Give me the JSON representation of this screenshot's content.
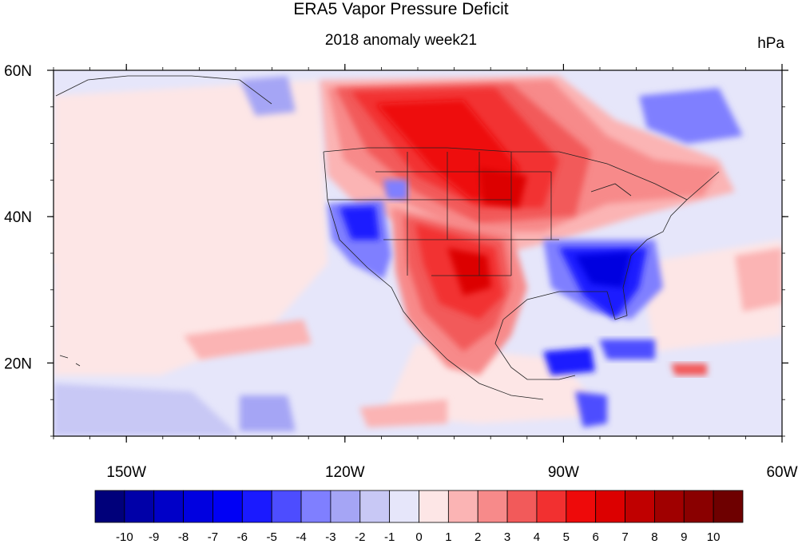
{
  "title": "ERA5 Vapor Pressure Deficit",
  "subtitle": "2018 anomaly week21",
  "units": "hPa",
  "map": {
    "lon_range": [
      -160,
      -60
    ],
    "lat_range": [
      10,
      60
    ],
    "lon_ticks": [
      {
        "value": -150,
        "label": "150W"
      },
      {
        "value": -120,
        "label": "120W"
      },
      {
        "value": -90,
        "label": "90W"
      },
      {
        "value": -60,
        "label": "60W"
      }
    ],
    "lat_ticks": [
      {
        "value": 20,
        "label": "20N"
      },
      {
        "value": 40,
        "label": "40N"
      },
      {
        "value": 60,
        "label": "60N"
      }
    ]
  },
  "colorbar": {
    "labels": [
      "-10",
      "-9",
      "-8",
      "-7",
      "-6",
      "-5",
      "-4",
      "-3",
      "-2",
      "-1",
      "0",
      "1",
      "2",
      "3",
      "4",
      "5",
      "6",
      "7",
      "8",
      "9",
      "10"
    ],
    "colors": [
      "#00007a",
      "#0000a8",
      "#0000c8",
      "#0000e0",
      "#0000f5",
      "#1a1aff",
      "#4d4dff",
      "#7f7fff",
      "#a5a5f5",
      "#c8c8f5",
      "#e6e6fa",
      "#fde6e6",
      "#fbb4b4",
      "#f78a8a",
      "#f25a5a",
      "#f23030",
      "#ee0a0a",
      "#dc0000",
      "#c00000",
      "#a00000",
      "#8a0000",
      "#6e0000"
    ]
  }
}
